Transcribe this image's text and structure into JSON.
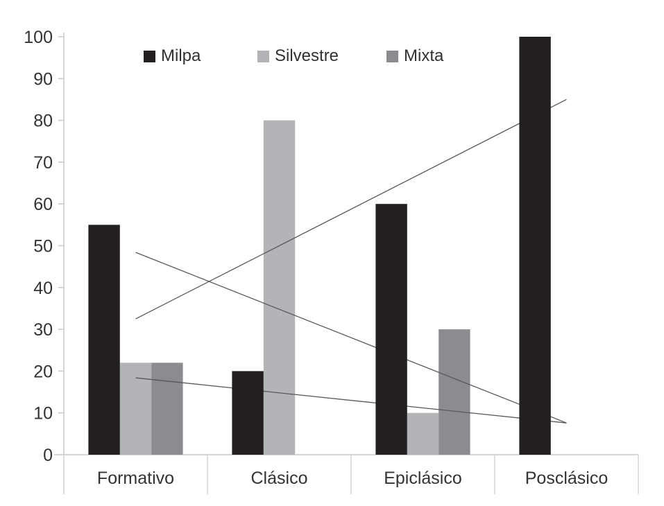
{
  "chart_data": {
    "type": "bar",
    "title": "",
    "xlabel": "",
    "ylabel": "",
    "categories": [
      "Formativo",
      "Clásico",
      "Epiclásico",
      "Posclásico"
    ],
    "series": [
      {
        "name": "Milpa",
        "color": "#231f20",
        "values": [
          55,
          20,
          60,
          100
        ]
      },
      {
        "name": "Silvestre",
        "color": "#b2b4b7",
        "values": [
          22,
          80,
          10,
          0
        ]
      },
      {
        "name": "Mixta",
        "color": "#8a8c8f",
        "values": [
          22,
          0,
          30,
          0
        ]
      }
    ],
    "trend_lines": [
      {
        "series": "Milpa",
        "start_value": 32.5,
        "end_value": 85.0
      },
      {
        "series": "Silvestre",
        "start_value": 48.4,
        "end_value": 7.6
      },
      {
        "series": "Mixta",
        "start_value": 18.4,
        "end_value": 7.6
      }
    ],
    "ylim": [
      0,
      100
    ],
    "yticks": [
      0,
      10,
      20,
      30,
      40,
      50,
      60,
      70,
      80,
      90,
      100
    ],
    "grid": false,
    "legend_position": "top"
  },
  "style": {
    "axis_color": "#c7c8ca",
    "separator_color": "#d2d3d5",
    "text_color": "#333333",
    "trend_line_color": "#57585a",
    "background": "#ffffff"
  }
}
